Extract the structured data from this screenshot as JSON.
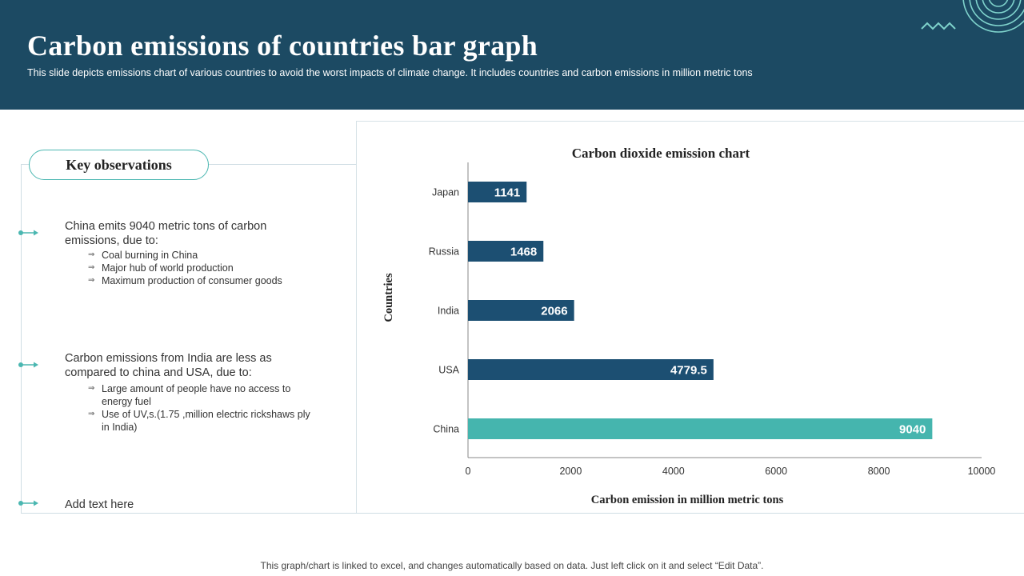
{
  "header": {
    "title": "Carbon emissions of countries bar graph",
    "subtitle": "This slide depicts emissions chart of various  countries to avoid the worst impacts of climate change. It includes countries and carbon emissions in million metric tons",
    "background_color": "#1c4a63"
  },
  "observations": {
    "heading": "Key observations",
    "items": [
      {
        "text": "China emits 9040 metric tons of carbon emissions, due to:",
        "bullets": [
          "Coal burning in China",
          "Major hub of world production",
          "Maximum production  of consumer goods"
        ]
      },
      {
        "text": "Carbon emissions from India are less as compared to china and USA, due to:",
        "bullets": [
          "Large amount of people have  no access to energy fuel",
          "Use of UV,s.(1.75 ,million electric rickshaws ply in India)"
        ]
      },
      {
        "text": "Add text here",
        "bullets": []
      }
    ],
    "bullet_symbol": "⇒",
    "accent_color": "#4bb7b1"
  },
  "footer": {
    "note": "This graph/chart is linked to excel,  and changes automatically based on data. Just left click on it and select “Edit Data”."
  },
  "chart_data": {
    "type": "bar",
    "orientation": "horizontal",
    "title": "Carbon dioxide emission chart",
    "xlabel": "Carbon  emission  in million  metric  tons",
    "ylabel": "Countries",
    "categories": [
      "Japan",
      "Russia",
      "India",
      "USA",
      "China"
    ],
    "values": [
      1141,
      1468,
      2066,
      4779.5,
      9040
    ],
    "value_labels": [
      "1141",
      "1468",
      "2066",
      "4779.5",
      "9040"
    ],
    "xlim": [
      0,
      10000
    ],
    "xticks": [
      "0",
      "2000",
      "4000",
      "6000",
      "8000",
      "10000"
    ],
    "grid": false,
    "colors": [
      "#1c4f72",
      "#1c4f72",
      "#1c4f72",
      "#1c4f72",
      "#45b5ae"
    ]
  }
}
